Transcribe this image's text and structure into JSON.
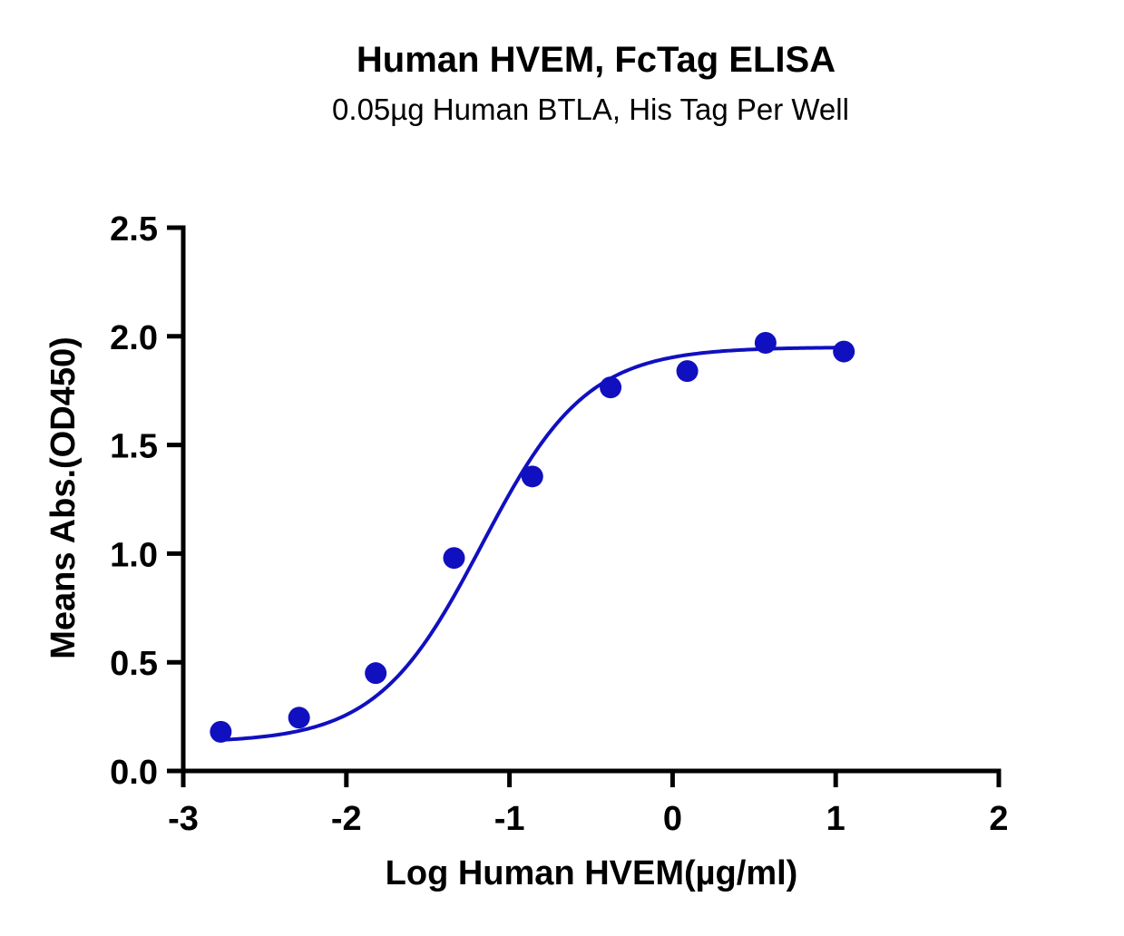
{
  "title": "Human HVEM, FcTag ELISA",
  "subtitle": "0.05µg Human BTLA, His Tag Per Well",
  "chart_data": {
    "type": "scatter",
    "title": "Human HVEM, FcTag ELISA",
    "subtitle": "0.05µg Human BTLA, His Tag Per Well",
    "xlabel": "Log Human HVEM(µg/ml)",
    "ylabel": "Means Abs.(OD450)",
    "xlim": [
      -3,
      2
    ],
    "ylim": [
      0,
      2.5
    ],
    "x_ticks": [
      -3,
      -2,
      -1,
      0,
      1,
      2
    ],
    "x_tick_labels": [
      "-3",
      "-2",
      "-1",
      "0",
      "1",
      "2"
    ],
    "y_ticks": [
      0,
      0.5,
      1,
      1.5,
      2,
      2.5
    ],
    "y_tick_labels": [
      "0.0",
      "0.5",
      "1.0",
      "1.5",
      "2.0",
      "2.5"
    ],
    "grid": false,
    "legend": "none",
    "color": "#1010c0",
    "series": [
      {
        "x": [
          -2.77,
          -2.29,
          -1.82,
          -1.34,
          -0.86,
          -0.38,
          0.09,
          0.57,
          1.05
        ],
        "y": [
          0.18,
          0.245,
          0.45,
          0.98,
          1.355,
          1.765,
          1.84,
          1.97,
          1.93
        ],
        "fit": {
          "model": "4PL",
          "bottom": 0.13,
          "top": 1.95,
          "logEC50": -1.17,
          "hill": 1.35,
          "x_range": [
            -2.77,
            1.05
          ]
        }
      }
    ]
  }
}
